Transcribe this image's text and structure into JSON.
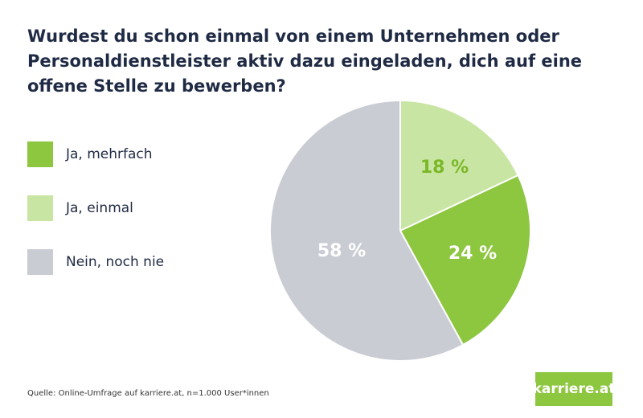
{
  "chart_data": {
    "type": "pie",
    "title": "Wurdest du schon einmal von einem Unternehmen oder Personaldienstleister aktiv dazu eingeladen, dich auf eine offene Stelle zu bewerben?",
    "slices": [
      {
        "label": "Ja, einmal",
        "value": 18,
        "data_label": "18 %",
        "color": "#c9e5a3",
        "label_color": "#7bb828"
      },
      {
        "label": "Ja, mehrfach",
        "value": 24,
        "data_label": "24 %",
        "color": "#8dc63f",
        "label_color": "#ffffff"
      },
      {
        "label": "Nein, noch nie",
        "value": 58,
        "data_label": "58 %",
        "color": "#c9ccd3",
        "label_color": "#ffffff"
      }
    ],
    "legend": [
      {
        "label": "Ja, mehrfach",
        "color": "#8dc63f"
      },
      {
        "label": "Ja, einmal",
        "color": "#c9e5a3"
      },
      {
        "label": "Nein, noch nie",
        "color": "#c9ccd3"
      }
    ],
    "legend_position": "left",
    "start": "top, clockwise"
  },
  "footer": {
    "source": "Quelle: Online-Umfrage auf karriere.at, n=1.000 User*innen"
  },
  "logo": {
    "text": "karriere.at",
    "color": "#8dc63f"
  }
}
